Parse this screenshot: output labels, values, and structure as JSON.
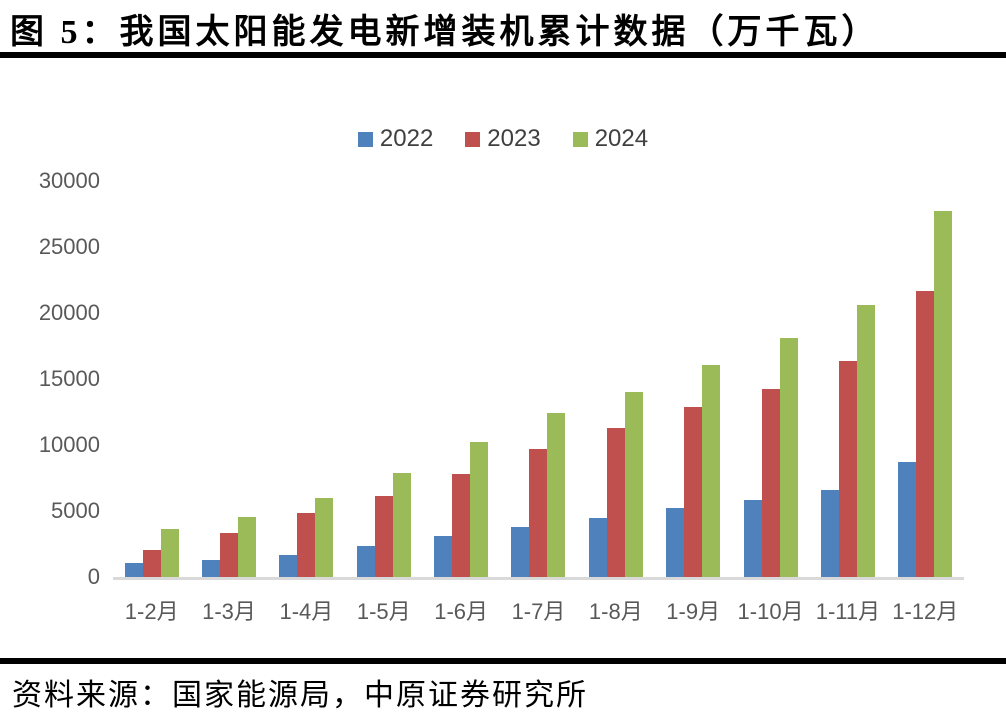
{
  "title": "图 5：我国太阳能发电新增装机累计数据（万千瓦）",
  "source": "资料来源：国家能源局，中原证券研究所",
  "colors": {
    "series_2022": "#4F81BD",
    "series_2023": "#C0504D",
    "series_2024": "#9BBB59",
    "axis_text": "#595959",
    "legend_text": "#404040",
    "baseline": "#D9D9D9",
    "divider": "#000000"
  },
  "chart_data": {
    "type": "bar",
    "title": "图 5：我国太阳能发电新增装机累计数据（万千瓦）",
    "unit": "万千瓦",
    "categories": [
      "1-2月",
      "1-3月",
      "1-4月",
      "1-5月",
      "1-6月",
      "1-7月",
      "1-8月",
      "1-9月",
      "1-10月",
      "1-11月",
      "1-12月"
    ],
    "series": [
      {
        "name": "2022",
        "color": "#4F81BD",
        "values": [
          1086,
          1321,
          1688,
          2371,
          3088,
          3773,
          4447,
          5260,
          5824,
          6571,
          8741
        ]
      },
      {
        "name": "2023",
        "color": "#C0504D",
        "values": [
          2037,
          3366,
          4831,
          6121,
          7842,
          9716,
          11316,
          12894,
          14236,
          16388,
          21688
        ]
      },
      {
        "name": "2024",
        "color": "#9BBB59",
        "values": [
          3672,
          4574,
          6011,
          7915,
          10248,
          12416,
          14026,
          16088,
          18130,
          20630,
          27757
        ]
      }
    ],
    "xlabel": "",
    "ylabel": "",
    "ylim": [
      0,
      30000
    ],
    "yticks": [
      0,
      5000,
      10000,
      15000,
      20000,
      25000,
      30000
    ],
    "grid": false,
    "legend_position": "top-center"
  }
}
